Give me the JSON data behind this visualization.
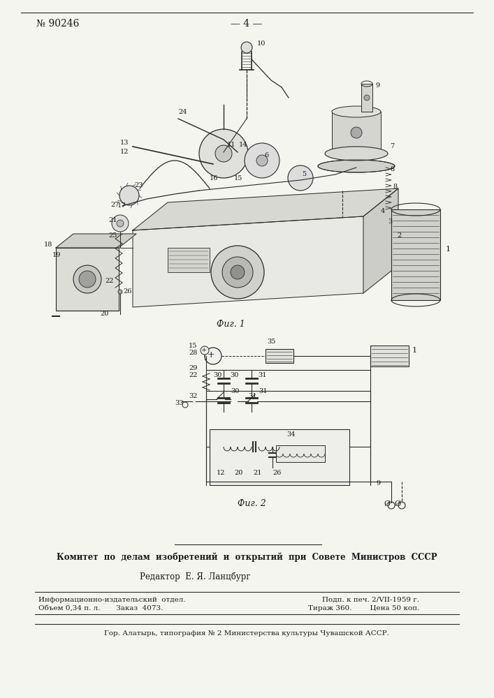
{
  "patent_number": "№ 90246",
  "page_number": "— 4 —",
  "fig1_caption": "Фиг. 1",
  "fig2_caption": "Фиг. 2",
  "committee_text": "Комитет  по  делам  изобретений  и  открытий  при  Совете  Министров  СССР",
  "editor_text": "Редактор  Е. Я. Ланцбург",
  "info_left1": "Информационно-издательский  отдел.",
  "info_right1": "Подп. к печ. 2/VII-1959 г.",
  "info_left2": "Объем 0,34 п. л.       Заказ  4073.",
  "info_right2": "Тираж 360.        Цена 50 коп.",
  "footer_text": "Гор. Алатырь, типография № 2 Министерства культуры Чувашской АССР.",
  "bg_color": "#f5f5f0",
  "text_color": "#1a1a1a",
  "line_color": "#2a2a2a"
}
